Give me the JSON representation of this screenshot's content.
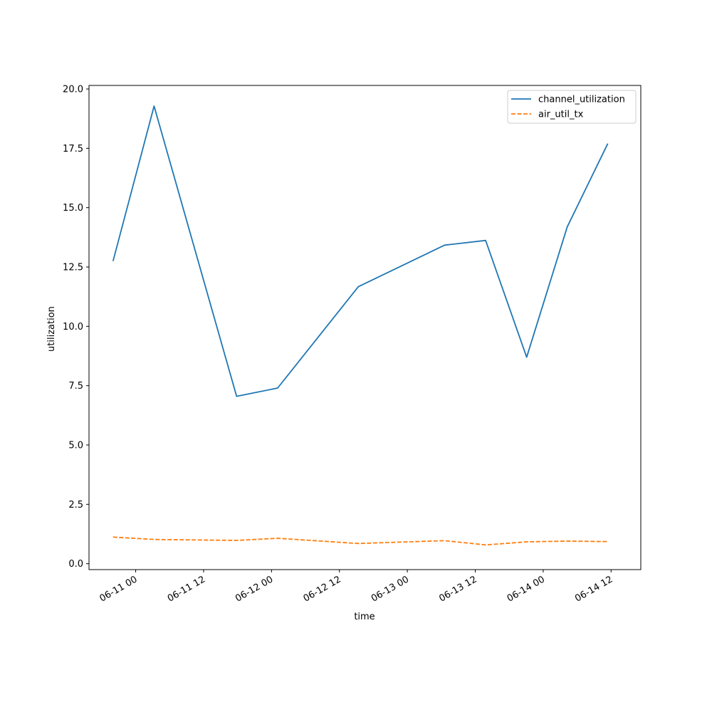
{
  "chart_data": {
    "type": "line",
    "title": "",
    "xlabel": "time",
    "ylabel": "utilization",
    "x_type": "datetime",
    "xlim": [
      "2024-06-10T15:45",
      "2024-06-14T17:15"
    ],
    "ylim": [
      -0.25,
      20.15
    ],
    "yticks": [
      0.0,
      2.5,
      5.0,
      7.5,
      10.0,
      12.5,
      15.0,
      17.5,
      20.0
    ],
    "ytick_labels": [
      "0.0",
      "2.5",
      "5.0",
      "7.5",
      "10.0",
      "12.5",
      "15.0",
      "17.5",
      "20.0"
    ],
    "xticks": [
      "2024-06-11T00:00",
      "2024-06-11T12:00",
      "2024-06-12T00:00",
      "2024-06-12T12:00",
      "2024-06-13T00:00",
      "2024-06-13T12:00",
      "2024-06-14T00:00",
      "2024-06-14T12:00"
    ],
    "xtick_labels": [
      "06-11 00",
      "06-11 12",
      "06-12 00",
      "06-12 12",
      "06-13 00",
      "06-13 12",
      "06-14 00",
      "06-14 12"
    ],
    "grid": false,
    "legend": "top-right",
    "x": [
      "2024-06-10T20:00",
      "2024-06-11T03:15",
      "2024-06-11T17:50",
      "2024-06-12T01:05",
      "2024-06-12T15:20",
      "2024-06-13T06:35",
      "2024-06-13T13:50",
      "2024-06-13T21:05",
      "2024-06-14T04:15",
      "2024-06-14T11:25"
    ],
    "series": [
      {
        "name": "channel_utilization",
        "color": "#1f77b4",
        "style": "solid",
        "values": [
          12.75,
          19.28,
          7.05,
          7.4,
          11.67,
          13.42,
          13.62,
          8.7,
          14.19,
          17.7
        ]
      },
      {
        "name": "air_util_tx",
        "color": "#ff7f0e",
        "style": "dashed",
        "values": [
          1.12,
          1.02,
          0.98,
          1.07,
          0.85,
          0.97,
          0.79,
          0.92,
          0.95,
          0.93
        ]
      }
    ]
  }
}
